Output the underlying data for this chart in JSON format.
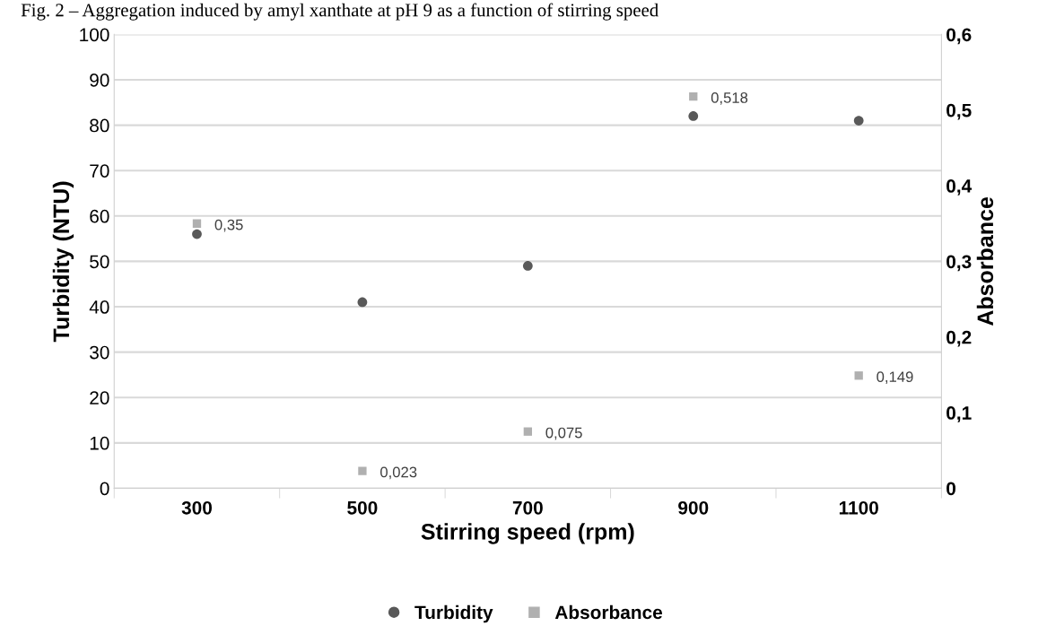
{
  "chart_data": {
    "type": "scatter",
    "title": "Fig. 2 – Aggregation induced by amyl xanthate at pH 9 as a function of stirring speed",
    "xlabel": "Stirring speed (rpm)",
    "ylabel": "Turbidity (NTU)",
    "y2label": "Absorbance",
    "categories": [
      "300",
      "500",
      "700",
      "900",
      "1100"
    ],
    "series": [
      {
        "name": "Turbidity",
        "color": "#595959",
        "marker": "circle",
        "values": [
          56,
          41,
          49,
          82,
          81
        ]
      },
      {
        "name": "Absorbance",
        "color": "#b0b0b0",
        "marker": "square",
        "axis": "y2",
        "values": [
          0.35,
          0.023,
          0.075,
          0.518,
          0.149
        ],
        "value_labels": [
          "0,35",
          "0,023",
          "0,075",
          "0,518",
          "0,149"
        ]
      }
    ],
    "ylim": [
      0,
      100
    ],
    "yticks": [
      0,
      10,
      20,
      30,
      40,
      50,
      60,
      70,
      80,
      90,
      100
    ],
    "y2lim": [
      0,
      0.6
    ],
    "y2ticks": [
      {
        "value": 0,
        "label": "0"
      },
      {
        "value": 0.1,
        "label": "0,1"
      },
      {
        "value": 0.2,
        "label": "0,2"
      },
      {
        "value": 0.3,
        "label": "0,3"
      },
      {
        "value": 0.4,
        "label": "0,4"
      },
      {
        "value": 0.5,
        "label": "0,5"
      },
      {
        "value": 0.6,
        "label": "0,6"
      }
    ],
    "grid": "y",
    "legend": "bottom"
  }
}
